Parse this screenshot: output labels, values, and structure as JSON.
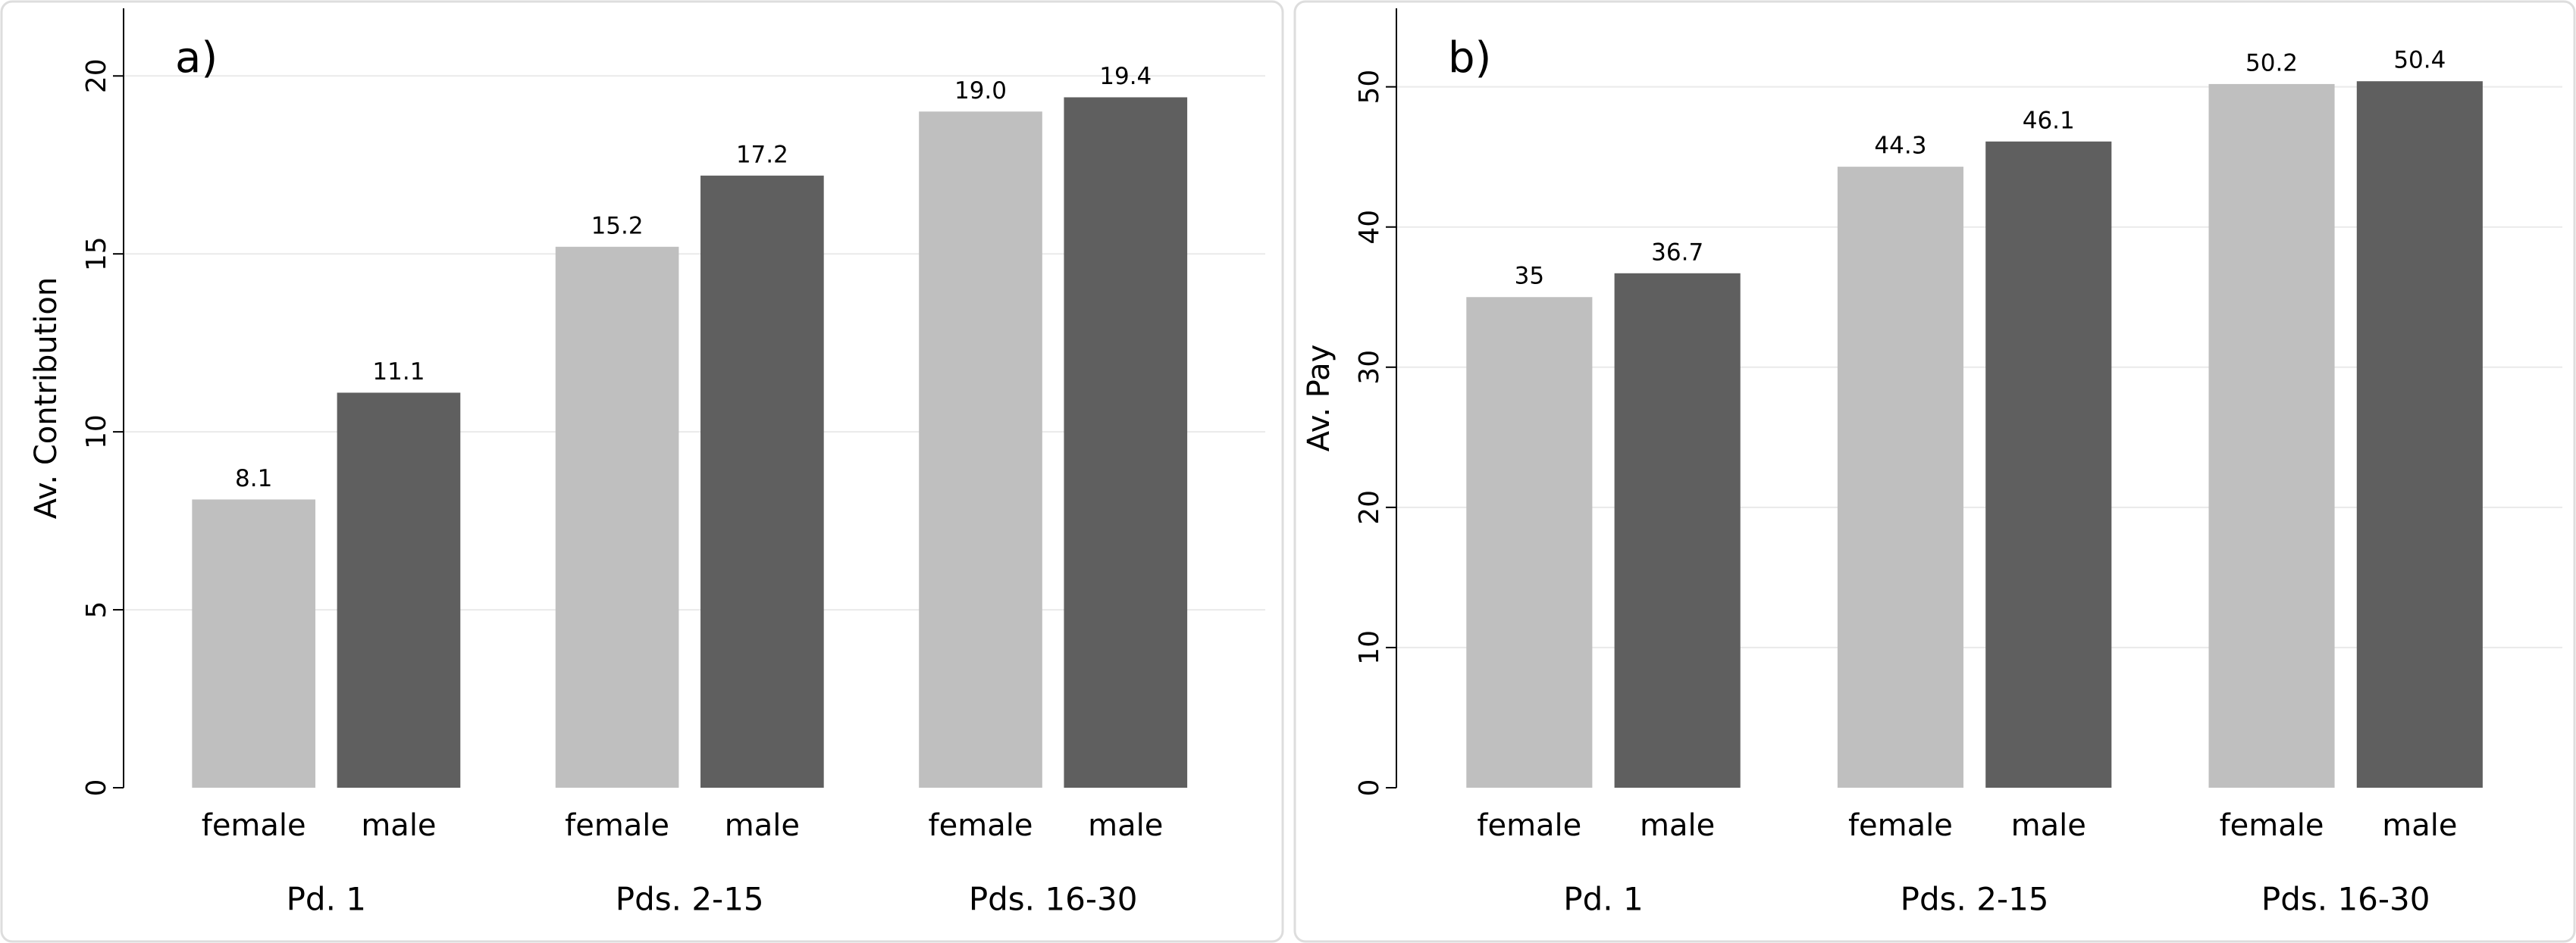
{
  "chart_data": [
    {
      "type": "bar",
      "annotation": "a)",
      "y_label": "Av. Contribution",
      "categories": [
        "Pd. 1",
        "Pds. 2-15",
        "Pds. 16-30"
      ],
      "series": [
        {
          "name": "female",
          "color": "#bfbfbf",
          "values": [
            8.1,
            15.2,
            19.0
          ],
          "value_labels": [
            "8.1",
            "15.2",
            "19.0"
          ]
        },
        {
          "name": "male",
          "color": "#5f5f5f",
          "values": [
            11.1,
            17.2,
            19.4
          ],
          "value_labels": [
            "11.1",
            "17.2",
            "19.4"
          ]
        }
      ],
      "ylim": [
        0,
        21.9
      ],
      "yticks": [
        0,
        5,
        10,
        15,
        20
      ],
      "grid": true
    },
    {
      "type": "bar",
      "annotation": "b)",
      "y_label": "Av. Pay",
      "categories": [
        "Pd. 1",
        "Pds. 2-15",
        "Pds. 16-30"
      ],
      "series": [
        {
          "name": "female",
          "color": "#bfbfbf",
          "values": [
            35,
            44.3,
            50.2
          ]
        },
        {
          "name": "male",
          "color": "#5f5f5f",
          "values": [
            36.7,
            46.1,
            50.4
          ]
        }
      ],
      "ylim": [
        0,
        55.6
      ],
      "yticks": [
        0,
        10,
        20,
        30,
        40,
        50
      ],
      "grid": true
    }
  ]
}
